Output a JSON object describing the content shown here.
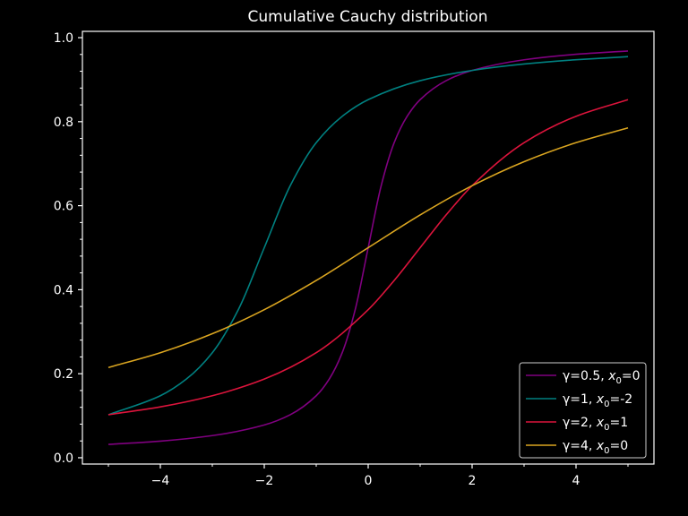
{
  "chart_data": {
    "type": "line",
    "title": "Cumulative Cauchy distribution",
    "xlabel": "",
    "ylabel": "",
    "xlim": [
      -5.5,
      5.5
    ],
    "ylim": [
      -0.015,
      1.015
    ],
    "x_ticks": [
      -4,
      -2,
      0,
      2,
      4
    ],
    "x_tick_labels": [
      "−4",
      "−2",
      "0",
      "2",
      "4"
    ],
    "y_ticks": [
      0.0,
      0.2,
      0.4,
      0.6,
      0.8,
      1.0
    ],
    "y_tick_labels": [
      "0.0",
      "0.2",
      "0.4",
      "0.6",
      "0.8",
      "1.0"
    ],
    "grid": false,
    "legend_position": "lower-right",
    "x_range": [
      -5,
      5
    ],
    "series": [
      {
        "legend": {
          "pre": "γ=0.5, ",
          "var": "x",
          "sub": "0",
          "post": "=0"
        },
        "color": "#800080",
        "points": [
          [
            -5,
            0.0317
          ],
          [
            -4,
            0.0396
          ],
          [
            -3,
            0.0527
          ],
          [
            -2,
            0.078
          ],
          [
            -1.5,
            0.1024
          ],
          [
            -1,
            0.1476
          ],
          [
            -0.75,
            0.1872
          ],
          [
            -0.5,
            0.25
          ],
          [
            -0.25,
            0.3524
          ],
          [
            0,
            0.5
          ],
          [
            0.25,
            0.6476
          ],
          [
            0.5,
            0.75
          ],
          [
            0.75,
            0.8128
          ],
          [
            1,
            0.8524
          ],
          [
            1.5,
            0.8976
          ],
          [
            2,
            0.922
          ],
          [
            3,
            0.9473
          ],
          [
            4,
            0.9604
          ],
          [
            5,
            0.9683
          ]
        ]
      },
      {
        "legend": {
          "pre": "γ=1, ",
          "var": "x",
          "sub": "0",
          "post": "=-2"
        },
        "color": "#008080",
        "points": [
          [
            -5,
            0.1024
          ],
          [
            -4,
            0.1476
          ],
          [
            -3.5,
            0.1872
          ],
          [
            -3,
            0.25
          ],
          [
            -2.5,
            0.3524
          ],
          [
            -2,
            0.5
          ],
          [
            -1.5,
            0.6476
          ],
          [
            -1,
            0.75
          ],
          [
            -0.5,
            0.8128
          ],
          [
            0,
            0.8524
          ],
          [
            1,
            0.8976
          ],
          [
            2,
            0.922
          ],
          [
            3,
            0.9372
          ],
          [
            4,
            0.9474
          ],
          [
            5,
            0.9548
          ]
        ]
      },
      {
        "legend": {
          "pre": "γ=2, ",
          "var": "x",
          "sub": "0",
          "post": "=1"
        },
        "color": "#dc143c",
        "points": [
          [
            -5,
            0.1024
          ],
          [
            -4,
            0.1211
          ],
          [
            -3,
            0.1476
          ],
          [
            -2,
            0.1872
          ],
          [
            -1,
            0.25
          ],
          [
            0,
            0.3524
          ],
          [
            0.5,
            0.422
          ],
          [
            1,
            0.5
          ],
          [
            1.5,
            0.578
          ],
          [
            2,
            0.6476
          ],
          [
            3,
            0.75
          ],
          [
            4,
            0.8128
          ],
          [
            5,
            0.8524
          ]
        ]
      },
      {
        "legend": {
          "pre": "γ=4, ",
          "var": "x",
          "sub": "0",
          "post": "=0"
        },
        "color": "#daa520",
        "points": [
          [
            -5,
            0.2148
          ],
          [
            -4,
            0.25
          ],
          [
            -3,
            0.2952
          ],
          [
            -2,
            0.3524
          ],
          [
            -1,
            0.422
          ],
          [
            0,
            0.5
          ],
          [
            1,
            0.578
          ],
          [
            2,
            0.6476
          ],
          [
            3,
            0.7048
          ],
          [
            4,
            0.75
          ],
          [
            5,
            0.7852
          ]
        ]
      }
    ]
  }
}
